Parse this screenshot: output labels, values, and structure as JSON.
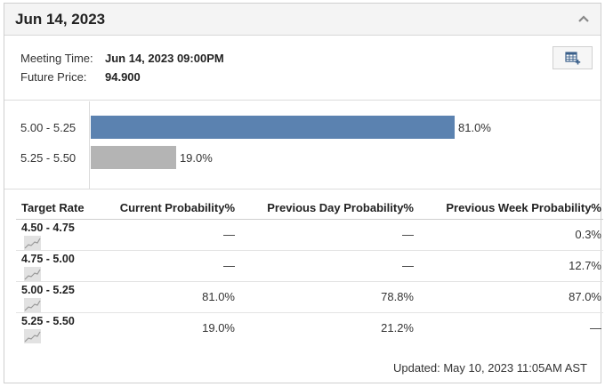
{
  "panel": {
    "title": "Jun 14, 2023"
  },
  "info": {
    "meeting_time_label": "Meeting Time:",
    "meeting_time_value": "Jun 14, 2023 09:00PM",
    "future_price_label": "Future Price:",
    "future_price_value": "94.900"
  },
  "icons": {
    "collapse": "chevron-up-icon",
    "export": "table-plus-icon",
    "sparkline": "sparkline-icon"
  },
  "chart_data": {
    "type": "bar",
    "orientation": "horizontal",
    "categories": [
      "5.00 - 5.25",
      "5.25 - 5.50"
    ],
    "values": [
      81.0,
      19.0
    ],
    "value_labels": [
      "81.0%",
      "19.0%"
    ],
    "colors": [
      "#5b82b0",
      "#b4b4b4"
    ],
    "xlim": [
      0,
      100
    ],
    "grid": false
  },
  "table": {
    "headers": [
      "Target Rate",
      "Current Probability%",
      "Previous Day Probability%",
      "Previous Week Probability%"
    ],
    "rows": [
      {
        "rate": "4.50 - 4.75",
        "current": "—",
        "prev_day": "—",
        "prev_week": "0.3%"
      },
      {
        "rate": "4.75 - 5.00",
        "current": "—",
        "prev_day": "—",
        "prev_week": "12.7%"
      },
      {
        "rate": "5.00 - 5.25",
        "current": "81.0%",
        "prev_day": "78.8%",
        "prev_week": "87.0%"
      },
      {
        "rate": "5.25 - 5.50",
        "current": "19.0%",
        "prev_day": "21.2%",
        "prev_week": "—"
      }
    ]
  },
  "footer": {
    "updated": "Updated: May 10, 2023 11:05AM AST"
  }
}
